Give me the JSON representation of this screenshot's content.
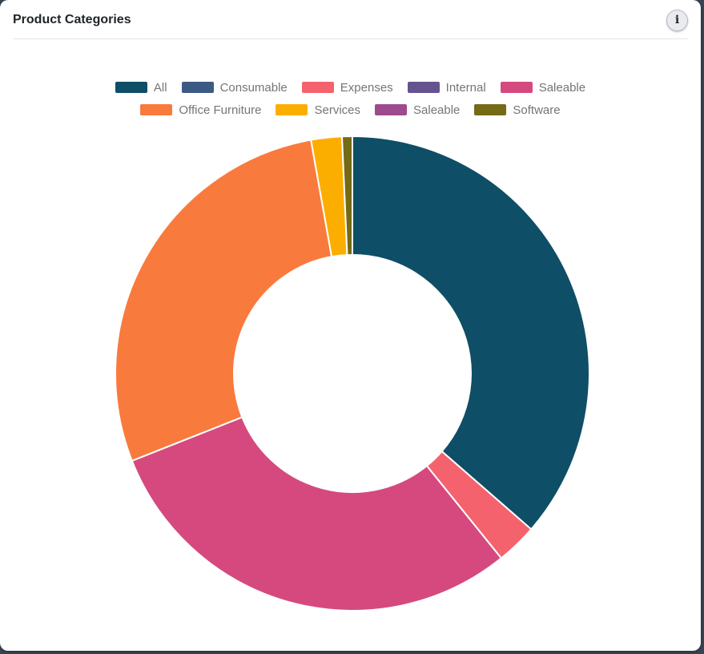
{
  "header": {
    "info_glyph": "i"
  },
  "chart_data": {
    "type": "donut",
    "title": "Product Categories",
    "legend_position": "top",
    "legend_rows": 2,
    "categories": [
      "All",
      "Consumable",
      "Expenses",
      "Internal",
      "Saleable",
      "Office Furniture",
      "Services",
      "Saleable",
      "Software"
    ],
    "colors": [
      "#0e4e66",
      "#3d5a85",
      "#f4636d",
      "#65538f",
      "#d5497f",
      "#f97a3d",
      "#fcae00",
      "#9d4a8f",
      "#756a15"
    ],
    "values_pct": [
      36.4,
      0,
      2.8,
      0,
      29.8,
      28.2,
      2.1,
      0,
      0.7
    ],
    "start_angle_deg": 0,
    "direction": "clockwise",
    "inner_radius_ratio": 0.5,
    "label_color": "#757575",
    "slice_border_color": "#ffffff"
  }
}
